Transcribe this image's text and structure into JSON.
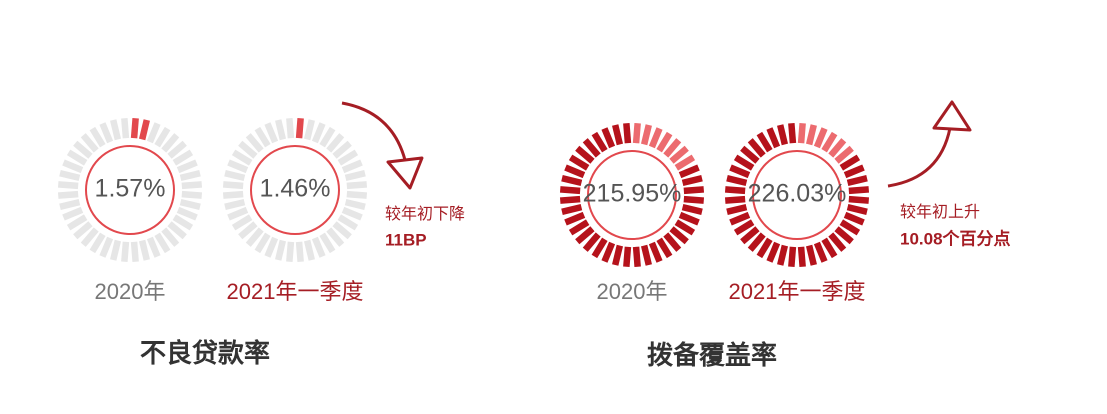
{
  "panels": [
    {
      "title": "不良贷款率",
      "gauges": [
        {
          "value": "1.57%",
          "label": "2020年"
        },
        {
          "value": "1.46%",
          "label": "2021年一季度"
        }
      ],
      "change": {
        "text": "较年初下降",
        "amount": "11BP"
      }
    },
    {
      "title": "拨备覆盖率",
      "gauges": [
        {
          "value": "215.95%",
          "label": "2020年"
        },
        {
          "value": "226.03%",
          "label": "2021年一季度"
        }
      ],
      "change": {
        "text": "较年初上升",
        "amount": "10.08个百分点"
      }
    }
  ]
}
